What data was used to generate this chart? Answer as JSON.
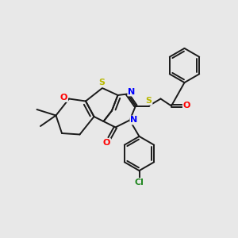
{
  "bg_color": "#e8e8e8",
  "bond_color": "#1a1a1a",
  "bond_width": 1.4,
  "S_color": "#b8b800",
  "N_color": "#0000ff",
  "O_color": "#ff0000",
  "Cl_color": "#228822",
  "figsize": [
    3.0,
    3.0
  ],
  "dpi": 100,
  "xlim": [
    0,
    10
  ],
  "ylim": [
    0,
    10
  ]
}
